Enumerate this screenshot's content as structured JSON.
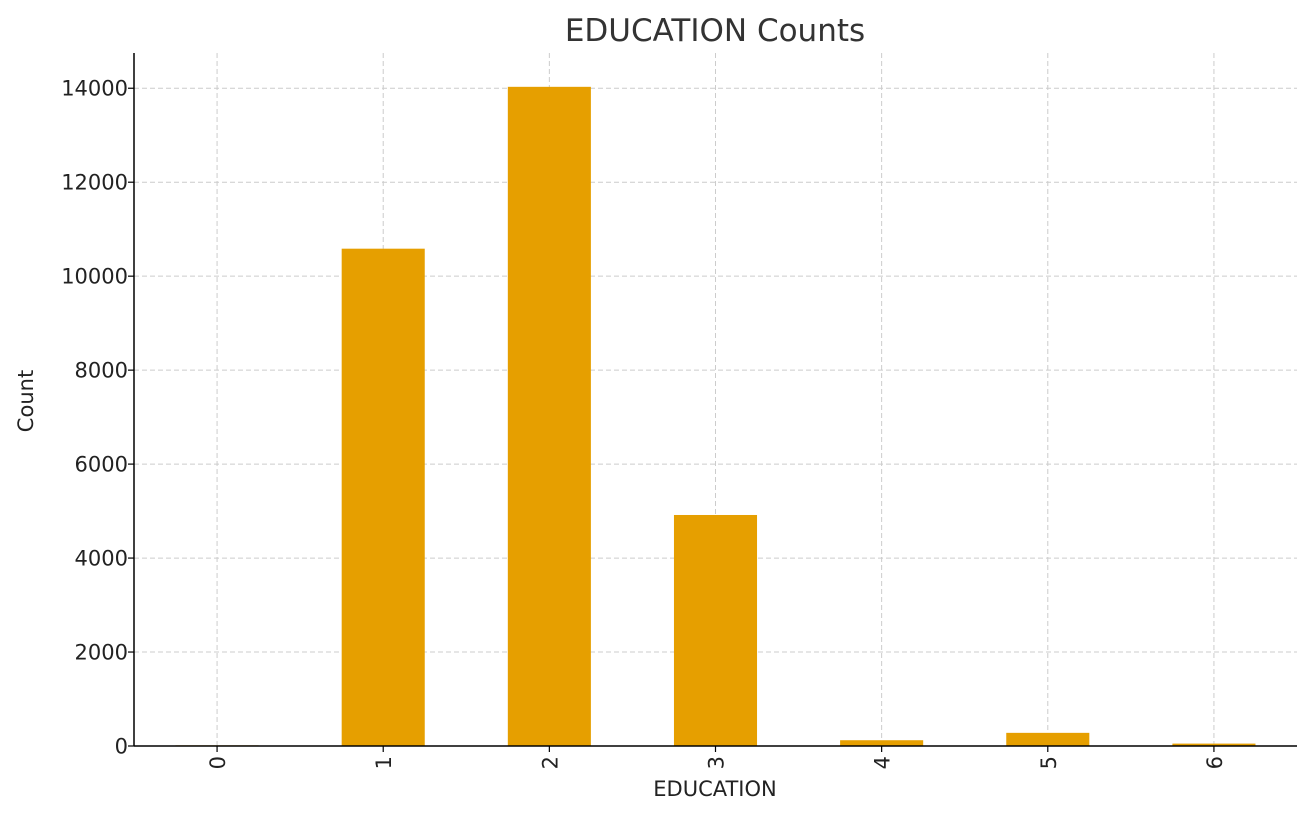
{
  "chart_data": {
    "type": "bar",
    "title": "EDUCATION Counts",
    "xlabel": "EDUCATION",
    "ylabel": "Count",
    "categories": [
      "0",
      "1",
      "2",
      "3",
      "4",
      "5",
      "6"
    ],
    "values": [
      14,
      10585,
      14030,
      4917,
      123,
      280,
      51
    ],
    "ylim": [
      0,
      14750
    ],
    "yticks": [
      0,
      2000,
      4000,
      6000,
      8000,
      10000,
      12000,
      14000
    ],
    "grid": true,
    "bar_color": "#E69F00"
  }
}
